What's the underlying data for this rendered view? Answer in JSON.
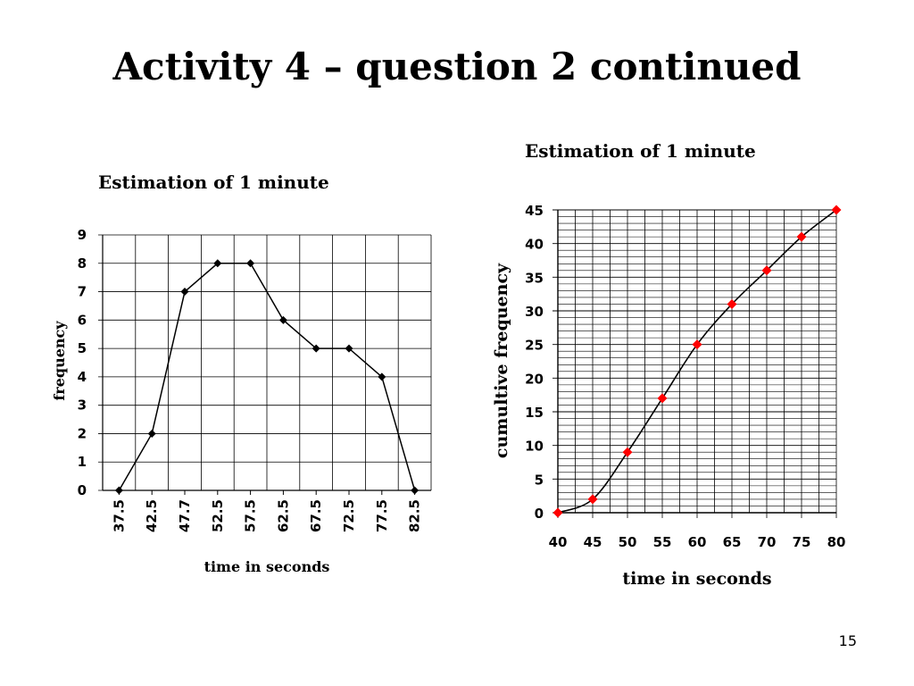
{
  "slide": {
    "title": "Activity 4 – question 2 continued",
    "page_number": "15"
  },
  "chart_data": [
    {
      "type": "line",
      "title": "Estimation of 1 minute",
      "xlabel": "time in seconds",
      "ylabel": "frequency",
      "categories": [
        "37.5",
        "42.5",
        "47.7",
        "52.5",
        "57.5",
        "62.5",
        "67.5",
        "72.5",
        "77.5",
        "82.5"
      ],
      "values": [
        0,
        2,
        7,
        8,
        8,
        6,
        5,
        5,
        4,
        0
      ],
      "ylim": [
        0,
        9
      ],
      "yticks": [
        "0",
        "1",
        "2",
        "3",
        "4",
        "5",
        "6",
        "7",
        "8",
        "9"
      ],
      "grid": true,
      "marker": "diamond",
      "marker_color": "#000000",
      "line_color": "#000000"
    },
    {
      "type": "line",
      "title": "Estimation of 1 minute",
      "xlabel": "time in seconds",
      "ylabel": "cumultive frequency",
      "x": [
        40,
        45,
        50,
        55,
        60,
        65,
        70,
        75,
        80
      ],
      "values": [
        0,
        2,
        9,
        17,
        25,
        31,
        36,
        41,
        45
      ],
      "xlim": [
        40,
        80
      ],
      "ylim": [
        0,
        45
      ],
      "xticks": [
        "40",
        "45",
        "50",
        "55",
        "60",
        "65",
        "70",
        "75",
        "80"
      ],
      "yticks": [
        "0",
        "5",
        "10",
        "15",
        "20",
        "25",
        "30",
        "35",
        "40",
        "45"
      ],
      "grid": true,
      "marker": "diamond",
      "marker_color": "#ff0000",
      "line_color": "#000000",
      "smooth": true
    }
  ]
}
